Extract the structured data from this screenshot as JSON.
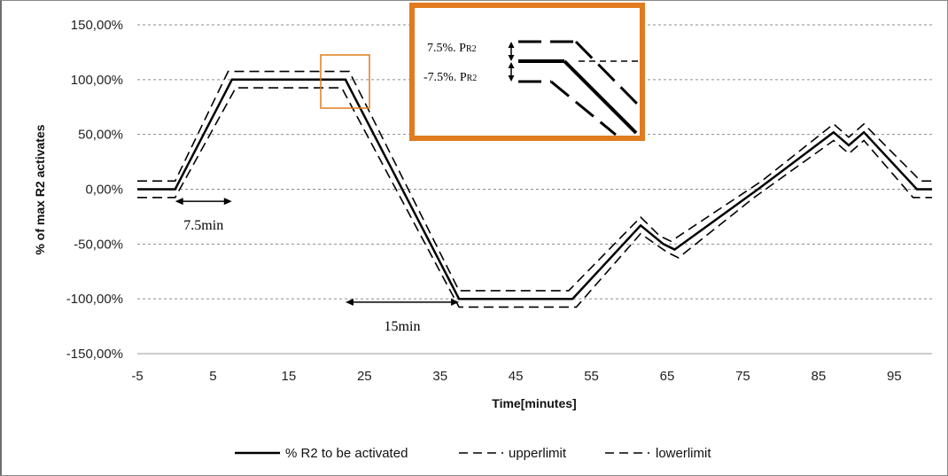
{
  "chart_data": {
    "type": "line",
    "title": "",
    "xlabel": "Time[minutes]",
    "ylabel": "% of max R2 activates",
    "xlim": [
      -5,
      100
    ],
    "ylim": [
      -150,
      150
    ],
    "x_ticks": [
      -5,
      5,
      15,
      25,
      35,
      45,
      55,
      65,
      75,
      85,
      95
    ],
    "x_tick_labels": [
      "-5",
      "5",
      "15",
      "25",
      "35",
      "45",
      "55",
      "65",
      "75",
      "85",
      "95"
    ],
    "y_ticks": [
      150,
      100,
      50,
      0,
      -50,
      -100,
      -150
    ],
    "y_tick_labels": [
      "150,00%",
      "100,00%",
      "50,00%",
      "0,00%",
      "-50,00%",
      "-100,00%",
      "-150,00%"
    ],
    "grid": "horizontal dashed",
    "legend_position": "bottom",
    "series": [
      {
        "name": "% R2 to be activated",
        "style": "solid",
        "points": [
          [
            -5,
            0
          ],
          [
            0,
            0
          ],
          [
            7.5,
            100
          ],
          [
            22.5,
            100
          ],
          [
            37.5,
            -100
          ],
          [
            52.5,
            -100
          ],
          [
            61.5,
            -33
          ],
          [
            64.5,
            -50
          ],
          [
            66,
            -55
          ],
          [
            77,
            0
          ],
          [
            87,
            52
          ],
          [
            89,
            40
          ],
          [
            91,
            52
          ],
          [
            98,
            0
          ],
          [
            100,
            0
          ]
        ]
      },
      {
        "name": "upperlimit",
        "style": "dashed",
        "points": [
          [
            -5,
            7.5
          ],
          [
            0,
            7.5
          ],
          [
            7,
            107.5
          ],
          [
            23,
            107.5
          ],
          [
            37.5,
            -92.5
          ],
          [
            52,
            -92.5
          ],
          [
            61.5,
            -25.5
          ],
          [
            64,
            -42.5
          ],
          [
            65.5,
            -47.5
          ],
          [
            77.5,
            7.5
          ],
          [
            87,
            59.5
          ],
          [
            89,
            47.5
          ],
          [
            91,
            59.5
          ],
          [
            98.5,
            7.5
          ],
          [
            100,
            7.5
          ]
        ]
      },
      {
        "name": "lowerlimit",
        "style": "dashed",
        "points": [
          [
            -5,
            -7.5
          ],
          [
            0,
            -7.5
          ],
          [
            8,
            92.5
          ],
          [
            22,
            92.5
          ],
          [
            37.5,
            -107.5
          ],
          [
            53,
            -107.5
          ],
          [
            61.5,
            -40.5
          ],
          [
            65,
            -57.5
          ],
          [
            66.5,
            -62.5
          ],
          [
            76.5,
            -7.5
          ],
          [
            87,
            44.5
          ],
          [
            89,
            32.5
          ],
          [
            91,
            44.5
          ],
          [
            97.5,
            -7.5
          ],
          [
            100,
            -7.5
          ]
        ]
      }
    ],
    "annotations": [
      {
        "text": "7.5min",
        "arrow_from": 0,
        "arrow_to": 7.5,
        "y": -11
      },
      {
        "text": "15min",
        "arrow_from": 22.5,
        "arrow_to": 37.5,
        "y": -103
      }
    ],
    "inset": {
      "label_upper_main": "7.5%. P",
      "label_upper_sub": "R2",
      "label_lower_main": "-7.5%. P",
      "label_lower_sub": "R2",
      "highlight_color": "#e07b1f"
    }
  }
}
